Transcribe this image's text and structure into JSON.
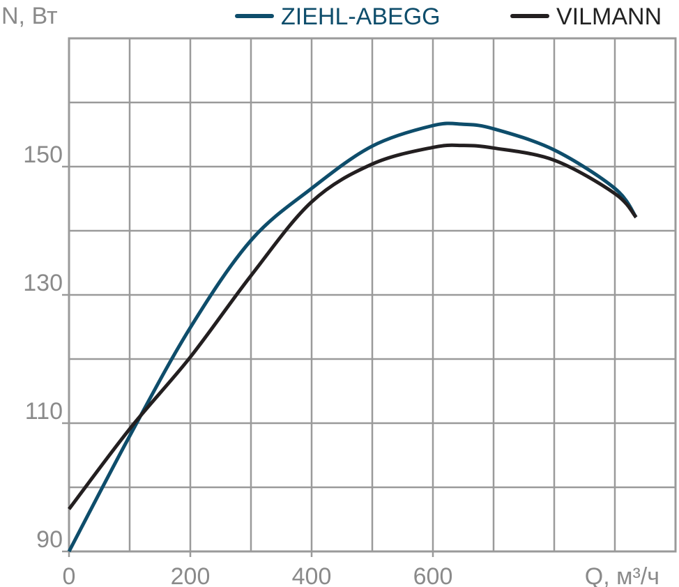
{
  "chart_data": {
    "type": "line",
    "y_label": "N, Вт",
    "x_label": "Q, м³/ч",
    "x": [
      0,
      100,
      200,
      300,
      400,
      500,
      600,
      650,
      700,
      800,
      900,
      935
    ],
    "series": [
      {
        "name": "ZIEHL-ABEGG",
        "color": "#0e4d6b",
        "values": [
          90,
          108,
          124.9,
          138.5,
          146.6,
          153.2,
          156.4,
          156.6,
          155.9,
          152.6,
          146.6,
          142.1
        ]
      },
      {
        "name": "VILMANN",
        "color": "#231f20",
        "values": [
          96.6,
          109.1,
          120.3,
          133,
          144.5,
          150.4,
          153,
          153.3,
          152.9,
          151,
          145.8,
          142.1
        ]
      }
    ],
    "xlim": [
      0,
      1000
    ],
    "ylim": [
      90,
      170
    ],
    "xticks": [
      0,
      200,
      400,
      600
    ],
    "yticks": [
      90,
      110,
      130,
      150
    ],
    "xgrid": [
      100,
      200,
      300,
      400,
      500,
      600,
      700,
      800,
      900
    ],
    "ygrid": [
      100,
      110,
      120,
      130,
      140,
      150,
      160
    ],
    "legend": "top-right"
  }
}
